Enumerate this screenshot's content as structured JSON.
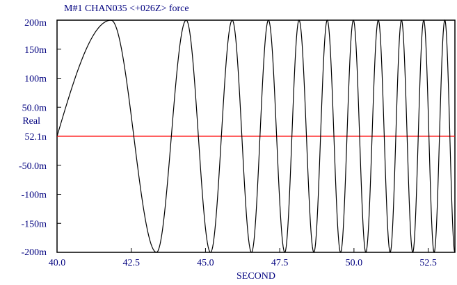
{
  "chart_data": {
    "type": "line",
    "title": "M#1 CHAN035 <+026Z> force",
    "xlabel": "SECOND",
    "ylabel": "Real",
    "xlim": [
      40.0,
      53.4
    ],
    "ylim": [
      -0.2,
      0.2
    ],
    "x_ticks": [
      40.0,
      42.5,
      45.0,
      47.5,
      50.0,
      52.5
    ],
    "x_tick_labels": [
      "40.0",
      "42.5",
      "45.0",
      "47.5",
      "50.0",
      "52.5"
    ],
    "y_ticks": [
      0.2,
      0.15,
      0.1,
      0.05,
      0.0,
      -0.05,
      -0.1,
      -0.15,
      -0.2
    ],
    "y_tick_labels": [
      "200m",
      "150m",
      "100m",
      "50.0m",
      "52.1n",
      "-50.0m",
      "-100m",
      "-150m",
      "-200m"
    ],
    "reference_line": {
      "y": 0.0,
      "color": "#ff0000"
    },
    "grid": false,
    "series": [
      {
        "color": "#000000",
        "points": [
          [
            40.0,
            0.0
          ],
          [
            41.82,
            0.2
          ],
          [
            43.35,
            -0.2
          ],
          [
            44.35,
            0.2
          ],
          [
            45.17,
            -0.2
          ],
          [
            45.9,
            0.2
          ],
          [
            46.55,
            -0.2
          ],
          [
            47.12,
            0.2
          ],
          [
            47.67,
            -0.2
          ],
          [
            48.15,
            0.2
          ],
          [
            48.65,
            -0.2
          ],
          [
            49.1,
            0.2
          ],
          [
            49.55,
            -0.2
          ],
          [
            49.98,
            0.2
          ],
          [
            50.4,
            -0.2
          ],
          [
            50.82,
            0.2
          ],
          [
            51.22,
            -0.2
          ],
          [
            51.6,
            0.2
          ],
          [
            51.98,
            -0.2
          ],
          [
            52.35,
            0.2
          ],
          [
            52.7,
            -0.2
          ],
          [
            53.06,
            0.2
          ],
          [
            53.4,
            -0.2
          ]
        ]
      }
    ]
  },
  "colors": {
    "frame": "#000000",
    "text": "#00007f",
    "signal": "#000000",
    "reference": "#ff0000"
  }
}
